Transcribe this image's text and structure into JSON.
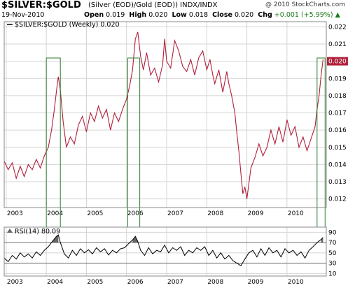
{
  "header": {
    "symbol": "$SILVER:$GOLD",
    "description": "(Silver (EOD)/Gold (EOD))  INDX/INDX",
    "copyright": "@ 2010 StockCharts.com",
    "date": "19-Nov-2010",
    "open_label": "Open",
    "open_value": "0.019",
    "high_label": "High",
    "high_value": "0.020",
    "low_label": "Low",
    "low_value": "0.018",
    "close_label": "Close",
    "close_value": "0.020",
    "chg_label": "Chg",
    "chg_value": "+0.001 (+5.99%)",
    "chg_marker": "▲"
  },
  "colors": {
    "price_line": "#b0203a",
    "rsi_line": "#000000",
    "highlight_box": "#2e7d2e",
    "grid": "#d4d4d4",
    "rsi_fill": "#666666",
    "last_marker": "#b0203a"
  },
  "chart_data": [
    {
      "type": "line",
      "title": "$SILVER:$GOLD (Weekly) 0.020",
      "legend_label": "$SILVER:$GOLD (Weekly) 0.020",
      "x_ticks": [
        "2003",
        "2004",
        "2005",
        "2006",
        "2007",
        "2008",
        "2009",
        "2010"
      ],
      "y_ticks": [
        "0.012",
        "0.013",
        "0.014",
        "0.015",
        "0.016",
        "0.017",
        "0.018",
        "0.019",
        "0.020",
        "0.021",
        "0.022"
      ],
      "ylim": [
        0.0115,
        0.0223
      ],
      "xlim": [
        2002.95,
        2010.98
      ],
      "grid": true,
      "last_value": 0.02,
      "series": [
        {
          "x": [
            2002.95,
            2003.05,
            2003.15,
            2003.25,
            2003.35,
            2003.45,
            2003.55,
            2003.65,
            2003.75,
            2003.85,
            2003.95,
            2004.05,
            2004.13,
            2004.2,
            2004.27,
            2004.3,
            2004.35,
            2004.42,
            2004.5,
            2004.6,
            2004.7,
            2004.8,
            2004.9,
            2005.0,
            2005.1,
            2005.2,
            2005.3,
            2005.4,
            2005.5,
            2005.6,
            2005.7,
            2005.8,
            2005.9,
            2006.0,
            2006.08,
            2006.15,
            2006.22,
            2006.28,
            2006.35,
            2006.42,
            2006.5,
            2006.6,
            2006.7,
            2006.8,
            2006.9,
            2006.95,
            2007.0,
            2007.1,
            2007.2,
            2007.3,
            2007.4,
            2007.5,
            2007.6,
            2007.7,
            2007.8,
            2007.9,
            2008.0,
            2008.08,
            2008.15,
            2008.2,
            2008.3,
            2008.4,
            2008.5,
            2008.55,
            2008.62,
            2008.7,
            2008.75,
            2008.8,
            2008.85,
            2008.9,
            2008.95,
            2009.0,
            2009.1,
            2009.2,
            2009.3,
            2009.4,
            2009.5,
            2009.6,
            2009.7,
            2009.8,
            2009.9,
            2010.0,
            2010.1,
            2010.2,
            2010.3,
            2010.4,
            2010.5,
            2010.6,
            2010.7,
            2010.75,
            2010.8,
            2010.85,
            2010.9
          ],
          "y": [
            0.0142,
            0.0137,
            0.0141,
            0.0132,
            0.0139,
            0.0133,
            0.014,
            0.0137,
            0.0143,
            0.0138,
            0.0145,
            0.015,
            0.016,
            0.0172,
            0.0186,
            0.0191,
            0.0183,
            0.0165,
            0.015,
            0.0156,
            0.0152,
            0.0163,
            0.0168,
            0.0159,
            0.017,
            0.0165,
            0.0174,
            0.0167,
            0.0172,
            0.016,
            0.017,
            0.0165,
            0.0172,
            0.0178,
            0.0186,
            0.0195,
            0.0213,
            0.0217,
            0.0203,
            0.0195,
            0.0205,
            0.0192,
            0.0196,
            0.0188,
            0.0198,
            0.0213,
            0.02,
            0.0196,
            0.0212,
            0.0206,
            0.0197,
            0.0194,
            0.0201,
            0.0192,
            0.0202,
            0.0206,
            0.0195,
            0.0201,
            0.0192,
            0.0187,
            0.0195,
            0.0182,
            0.0194,
            0.0187,
            0.018,
            0.017,
            0.0158,
            0.0148,
            0.0135,
            0.0123,
            0.0127,
            0.012,
            0.0138,
            0.0144,
            0.0152,
            0.0145,
            0.015,
            0.016,
            0.0152,
            0.0162,
            0.0153,
            0.0166,
            0.0157,
            0.0162,
            0.015,
            0.0156,
            0.0148,
            0.0155,
            0.0162,
            0.0172,
            0.018,
            0.0192,
            0.0201
          ]
        }
      ],
      "highlight_periods": [
        [
          2004.0,
          2004.35
        ],
        [
          2006.03,
          2006.33
        ],
        [
          2010.75,
          2010.95
        ]
      ]
    },
    {
      "type": "line",
      "title": "RSI(14) 80.09",
      "legend_label": "RSI(14) 80.09",
      "x_ticks": [
        "2003",
        "2004",
        "2005",
        "2006",
        "2007",
        "2008",
        "2009",
        "2010"
      ],
      "y_ticks": [
        "10",
        "30",
        "50",
        "70",
        "90"
      ],
      "reference_lines": [
        30,
        70
      ],
      "ylim": [
        5,
        100
      ],
      "xlim": [
        2002.95,
        2010.98
      ],
      "series": [
        {
          "x": [
            2002.95,
            2003.05,
            2003.15,
            2003.25,
            2003.35,
            2003.45,
            2003.55,
            2003.65,
            2003.75,
            2003.85,
            2003.95,
            2004.05,
            2004.15,
            2004.25,
            2004.3,
            2004.35,
            2004.45,
            2004.55,
            2004.65,
            2004.75,
            2004.85,
            2004.95,
            2005.05,
            2005.15,
            2005.25,
            2005.35,
            2005.45,
            2005.55,
            2005.65,
            2005.75,
            2005.85,
            2005.95,
            2006.05,
            2006.15,
            2006.22,
            2006.28,
            2006.35,
            2006.45,
            2006.55,
            2006.65,
            2006.75,
            2006.85,
            2006.95,
            2007.05,
            2007.15,
            2007.25,
            2007.35,
            2007.45,
            2007.55,
            2007.65,
            2007.75,
            2007.85,
            2007.95,
            2008.05,
            2008.15,
            2008.25,
            2008.35,
            2008.45,
            2008.55,
            2008.65,
            2008.75,
            2008.85,
            2008.95,
            2009.05,
            2009.15,
            2009.25,
            2009.35,
            2009.45,
            2009.55,
            2009.65,
            2009.75,
            2009.85,
            2009.95,
            2010.05,
            2010.15,
            2010.25,
            2010.35,
            2010.45,
            2010.55,
            2010.65,
            2010.75,
            2010.85,
            2010.9
          ],
          "y": [
            40,
            33,
            45,
            38,
            50,
            42,
            48,
            40,
            52,
            45,
            55,
            62,
            72,
            82,
            85,
            70,
            48,
            40,
            55,
            45,
            58,
            50,
            56,
            48,
            60,
            52,
            58,
            46,
            55,
            50,
            58,
            60,
            68,
            75,
            82,
            72,
            55,
            45,
            60,
            48,
            55,
            52,
            65,
            50,
            60,
            55,
            62,
            45,
            55,
            50,
            60,
            55,
            62,
            45,
            55,
            40,
            50,
            38,
            45,
            35,
            30,
            25,
            38,
            50,
            55,
            42,
            58,
            45,
            60,
            50,
            55,
            42,
            58,
            50,
            55,
            45,
            52,
            40,
            55,
            62,
            70,
            76,
            80
          ]
        }
      ],
      "overbought_fill_above": 70
    }
  ]
}
